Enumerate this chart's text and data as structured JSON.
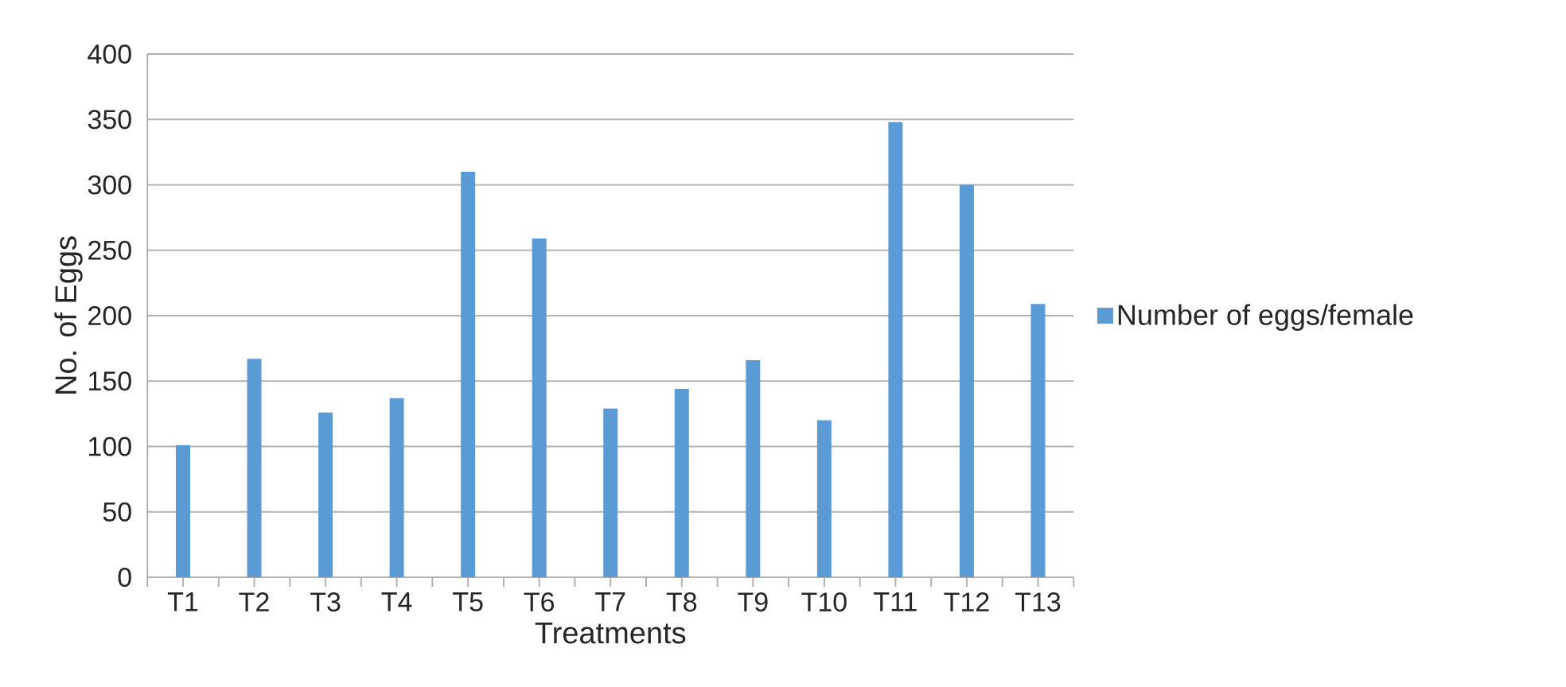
{
  "chart_data": {
    "type": "bar",
    "xlabel": "Treatments",
    "ylabel": "No. of Eggs",
    "categories": [
      "T1",
      "T2",
      "T3",
      "T4",
      "T5",
      "T6",
      "T7",
      "T8",
      "T9",
      "T10",
      "T11",
      "T12",
      "T13"
    ],
    "series": [
      {
        "name": "Number of eggs/female",
        "color": "#5b9bd5",
        "values": [
          101,
          167,
          126,
          137,
          310,
          259,
          129,
          144,
          166,
          120,
          348,
          300,
          209
        ]
      }
    ],
    "ylim": [
      0,
      400
    ],
    "yticks": [
      0,
      50,
      100,
      150,
      200,
      250,
      300,
      350,
      400
    ],
    "grid": "y",
    "legend": "right"
  }
}
